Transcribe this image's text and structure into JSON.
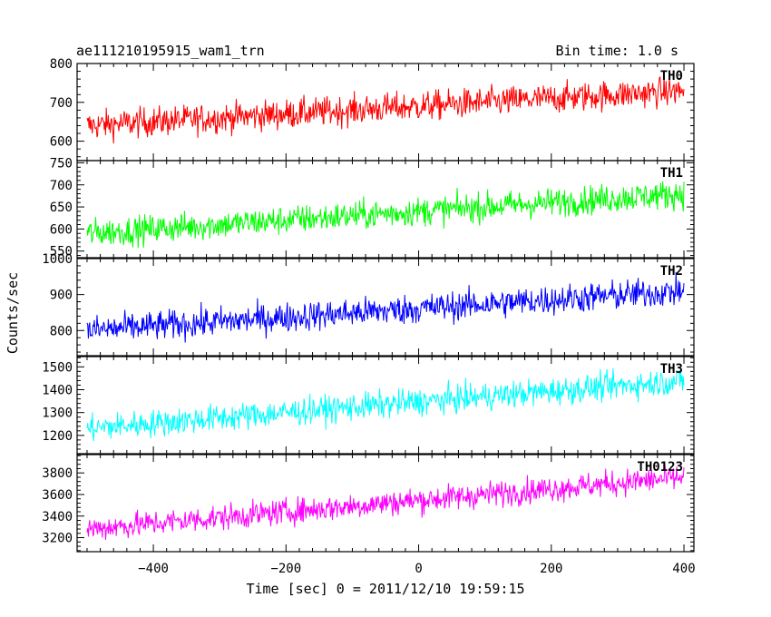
{
  "header": {
    "title": "ae111210195915_wam1_trn",
    "bin_time": "Bin time: 1.0 s"
  },
  "chart_data": {
    "type": "line",
    "xlabel": "Time [sec] 0 = 2011/12/10 19:59:15",
    "ylabel": "Counts/sec",
    "xlim": [
      -515,
      415
    ],
    "xticks": [
      -400,
      -200,
      0,
      200,
      400
    ],
    "xtick_labels": [
      "−400",
      "−200",
      "0",
      "200",
      "400"
    ],
    "x_range": [
      -500,
      400
    ],
    "bin_time": 1.0,
    "panels": [
      {
        "name": "TH0",
        "color": "#ff0000",
        "ylim": [
          550,
          800
        ],
        "yticks": [
          600,
          700,
          800
        ],
        "trend_start": 640,
        "trend_end": 730,
        "noise_amp": 35
      },
      {
        "name": "TH1",
        "color": "#00ff00",
        "ylim": [
          535,
          755
        ],
        "yticks": [
          550,
          600,
          650,
          700,
          750
        ],
        "trend_start": 590,
        "trend_end": 680,
        "noise_amp": 30
      },
      {
        "name": "TH2",
        "color": "#0000ff",
        "ylim": [
          730,
          1000
        ],
        "yticks": [
          800,
          900,
          1000
        ],
        "trend_start": 800,
        "trend_end": 910,
        "noise_amp": 38
      },
      {
        "name": "TH3",
        "color": "#00ffff",
        "ylim": [
          1120,
          1545
        ],
        "yticks": [
          1200,
          1300,
          1400,
          1500
        ],
        "trend_start": 1230,
        "trend_end": 1440,
        "noise_amp": 55
      },
      {
        "name": "TH0123",
        "color": "#ff00ff",
        "ylim": [
          3070,
          3970
        ],
        "yticks": [
          3200,
          3400,
          3600,
          3800
        ],
        "trend_start": 3280,
        "trend_end": 3760,
        "noise_amp": 110
      }
    ]
  }
}
